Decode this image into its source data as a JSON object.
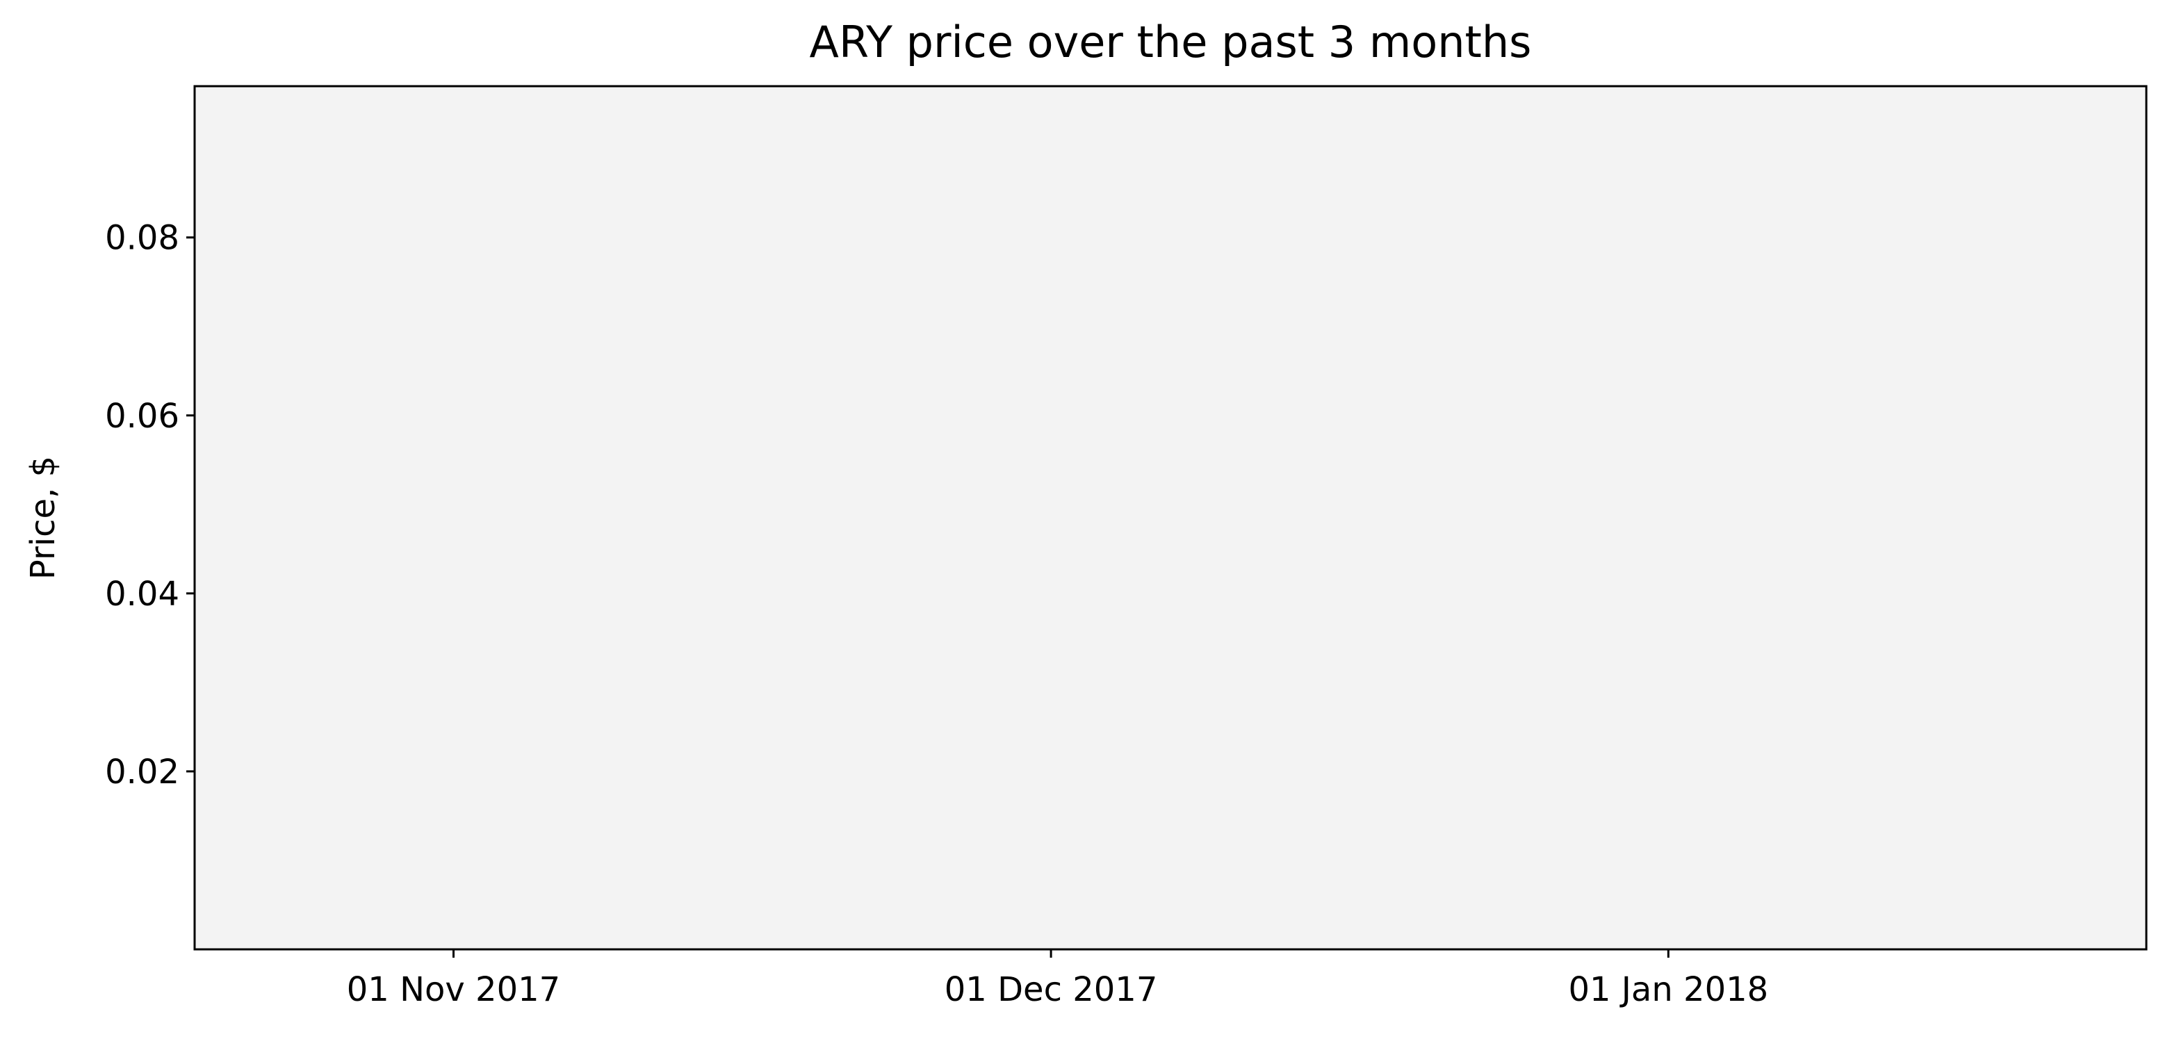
{
  "chart_data": {
    "type": "line",
    "title": "ARY price over the past 3 months",
    "xlabel": "",
    "ylabel": "Price, $",
    "x_axis_type": "date",
    "xlim": [
      "2017-10-19",
      "2018-01-25"
    ],
    "ylim": [
      0.0,
      0.097
    ],
    "x_ticks": [
      {
        "value": "2017-11-01",
        "label": "01 Nov 2017"
      },
      {
        "value": "2017-12-01",
        "label": "01 Dec 2017"
      },
      {
        "value": "2018-01-01",
        "label": "01 Jan 2018"
      }
    ],
    "y_ticks": [
      {
        "value": 0.02,
        "label": "0.02"
      },
      {
        "value": 0.04,
        "label": "0.04"
      },
      {
        "value": 0.06,
        "label": "0.06"
      },
      {
        "value": 0.08,
        "label": "0.08"
      }
    ],
    "grid": false,
    "legend": "none",
    "series": [],
    "colors": {
      "plot_background": "#f3f3f3",
      "axes": "#000000",
      "page_background": "#ffffff"
    }
  }
}
